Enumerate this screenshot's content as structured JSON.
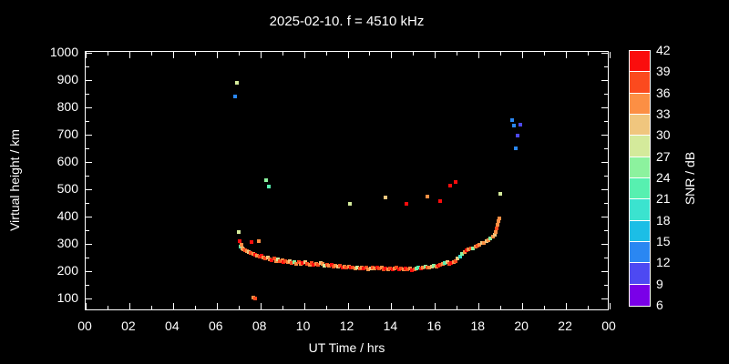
{
  "title": "2025-02-10. f = 4510 kHz",
  "chart_data": {
    "type": "scatter",
    "title": "2025-02-10. f = 4510 kHz",
    "xlabel": "UT Time / hrs",
    "ylabel": "Virtual height / km",
    "xlim_hours": [
      0,
      24
    ],
    "ylim_km": [
      50,
      1000
    ],
    "grid": false,
    "background_color": "#000000",
    "axis_color": "#ffffff",
    "x_tick_labels": [
      "00",
      "02",
      "04",
      "06",
      "08",
      "10",
      "12",
      "14",
      "16",
      "18",
      "20",
      "22",
      "00"
    ],
    "x_tick_hours": [
      0,
      2,
      4,
      6,
      8,
      10,
      12,
      14,
      16,
      18,
      20,
      22,
      24
    ],
    "x_minor_tick_hours": [
      1,
      3,
      5,
      7,
      9,
      11,
      13,
      15,
      17,
      19,
      21,
      23
    ],
    "y_tick_values": [
      100,
      200,
      300,
      400,
      500,
      600,
      700,
      800,
      900,
      1000
    ],
    "y_minor_tick_values": [
      150,
      250,
      350,
      450,
      550,
      650,
      750,
      850,
      950
    ],
    "colorbar": {
      "label": "SNR / dB",
      "tick_values": [
        42,
        39,
        36,
        33,
        30,
        27,
        24,
        21,
        18,
        15,
        12,
        9,
        6
      ],
      "min": 6,
      "max": 42,
      "segment_colors_low_to_high": [
        "#7a00e8",
        "#4d49f2",
        "#2a87f2",
        "#1cbee6",
        "#3be3cf",
        "#57f0b0",
        "#8cf29e",
        "#d4ea9b",
        "#f0c67e",
        "#fc8f44",
        "#fb4a1e",
        "#fa0d0d"
      ]
    },
    "point_legend": "each point = [UT time in hours, virtual height in km, SNR in dB]",
    "points": [
      [
        6.85,
        840,
        14
      ],
      [
        6.92,
        890,
        28
      ],
      [
        7.0,
        345,
        28
      ],
      [
        7.04,
        310,
        40
      ],
      [
        7.1,
        290,
        22
      ],
      [
        7.15,
        296,
        34
      ],
      [
        7.19,
        284,
        31
      ],
      [
        7.24,
        280,
        34
      ],
      [
        7.3,
        276,
        37
      ],
      [
        7.38,
        274,
        34
      ],
      [
        7.46,
        270,
        31
      ],
      [
        7.55,
        268,
        37
      ],
      [
        7.6,
        307,
        40
      ],
      [
        7.68,
        264,
        35
      ],
      [
        7.67,
        105,
        34
      ],
      [
        7.76,
        100,
        37
      ],
      [
        7.76,
        260,
        40
      ],
      [
        7.85,
        256,
        34
      ],
      [
        7.92,
        310,
        34
      ],
      [
        7.98,
        253,
        37
      ],
      [
        8.06,
        258,
        40
      ],
      [
        8.15,
        250,
        34
      ],
      [
        8.24,
        246,
        37
      ],
      [
        8.25,
        533,
        26
      ],
      [
        8.34,
        250,
        31
      ],
      [
        8.4,
        510,
        22
      ],
      [
        8.44,
        244,
        34
      ],
      [
        8.53,
        240,
        40
      ],
      [
        8.62,
        246,
        37
      ],
      [
        8.72,
        238,
        34
      ],
      [
        8.81,
        242,
        28
      ],
      [
        8.9,
        236,
        37
      ],
      [
        9.0,
        240,
        34
      ],
      [
        9.06,
        233,
        40
      ],
      [
        9.15,
        238,
        37
      ],
      [
        9.25,
        232,
        34
      ],
      [
        9.35,
        236,
        31
      ],
      [
        9.45,
        230,
        37
      ],
      [
        9.55,
        234,
        25
      ],
      [
        9.65,
        228,
        34
      ],
      [
        9.75,
        232,
        37
      ],
      [
        9.85,
        227,
        34
      ],
      [
        9.95,
        230,
        40
      ],
      [
        10.05,
        233,
        31
      ],
      [
        10.15,
        228,
        37
      ],
      [
        10.25,
        225,
        34
      ],
      [
        10.35,
        229,
        37
      ],
      [
        10.45,
        224,
        40
      ],
      [
        10.55,
        227,
        34
      ],
      [
        10.65,
        222,
        37
      ],
      [
        10.75,
        230,
        31
      ],
      [
        10.85,
        226,
        34
      ],
      [
        10.95,
        221,
        28
      ],
      [
        11.05,
        224,
        37
      ],
      [
        11.15,
        219,
        34
      ],
      [
        11.25,
        222,
        40
      ],
      [
        11.35,
        217,
        37
      ],
      [
        11.45,
        220,
        34
      ],
      [
        11.55,
        216,
        31
      ],
      [
        11.65,
        219,
        37
      ],
      [
        11.75,
        214,
        40
      ],
      [
        11.85,
        217,
        34
      ],
      [
        11.95,
        213,
        37
      ],
      [
        12.05,
        216,
        34
      ],
      [
        12.1,
        447,
        28
      ],
      [
        12.15,
        212,
        40
      ],
      [
        12.25,
        215,
        37
      ],
      [
        12.35,
        211,
        34
      ],
      [
        12.45,
        214,
        28
      ],
      [
        12.55,
        210,
        37
      ],
      [
        12.65,
        213,
        34
      ],
      [
        12.75,
        209,
        40
      ],
      [
        12.85,
        212,
        37
      ],
      [
        12.95,
        208,
        34
      ],
      [
        13.05,
        211,
        31
      ],
      [
        13.15,
        214,
        37
      ],
      [
        13.25,
        210,
        34
      ],
      [
        13.35,
        213,
        40
      ],
      [
        13.45,
        209,
        37
      ],
      [
        13.55,
        212,
        34
      ],
      [
        13.65,
        208,
        37
      ],
      [
        13.75,
        470,
        32
      ],
      [
        13.75,
        211,
        40
      ],
      [
        13.85,
        207,
        34
      ],
      [
        13.95,
        210,
        37
      ],
      [
        14.05,
        206,
        40
      ],
      [
        14.15,
        209,
        34
      ],
      [
        14.25,
        212,
        37
      ],
      [
        14.35,
        208,
        40
      ],
      [
        14.45,
        211,
        37
      ],
      [
        14.55,
        207,
        34
      ],
      [
        14.65,
        210,
        40
      ],
      [
        14.7,
        447,
        40
      ],
      [
        14.75,
        206,
        37
      ],
      [
        14.85,
        209,
        34
      ],
      [
        14.95,
        205,
        40
      ],
      [
        15.05,
        208,
        37
      ],
      [
        15.15,
        211,
        26
      ],
      [
        15.25,
        214,
        23
      ],
      [
        15.35,
        210,
        40
      ],
      [
        15.45,
        213,
        34
      ],
      [
        15.55,
        216,
        26
      ],
      [
        15.65,
        472,
        34
      ],
      [
        15.65,
        212,
        37
      ],
      [
        15.75,
        215,
        34
      ],
      [
        15.85,
        218,
        31
      ],
      [
        15.95,
        221,
        26
      ],
      [
        16.05,
        217,
        34
      ],
      [
        16.15,
        220,
        40
      ],
      [
        16.25,
        456,
        40
      ],
      [
        16.25,
        223,
        37
      ],
      [
        16.35,
        226,
        34
      ],
      [
        16.45,
        229,
        23
      ],
      [
        16.55,
        232,
        31
      ],
      [
        16.65,
        228,
        37
      ],
      [
        16.7,
        513,
        41
      ],
      [
        16.75,
        231,
        40
      ],
      [
        16.85,
        234,
        34
      ],
      [
        16.95,
        237,
        37
      ],
      [
        16.96,
        528,
        41
      ],
      [
        17.05,
        247,
        31
      ],
      [
        17.15,
        255,
        20
      ],
      [
        17.25,
        262,
        26
      ],
      [
        17.35,
        270,
        34
      ],
      [
        17.45,
        276,
        40
      ],
      [
        17.55,
        280,
        34
      ],
      [
        17.65,
        282,
        37
      ],
      [
        17.75,
        285,
        26
      ],
      [
        17.85,
        290,
        34
      ],
      [
        17.95,
        295,
        37
      ],
      [
        18.05,
        298,
        34
      ],
      [
        18.15,
        302,
        31
      ],
      [
        18.25,
        305,
        34
      ],
      [
        18.35,
        310,
        31
      ],
      [
        18.45,
        315,
        34
      ],
      [
        18.55,
        320,
        26
      ],
      [
        18.65,
        326,
        34
      ],
      [
        18.72,
        335,
        31
      ],
      [
        18.78,
        345,
        34
      ],
      [
        18.84,
        358,
        37
      ],
      [
        18.88,
        370,
        34
      ],
      [
        18.92,
        382,
        34
      ],
      [
        18.95,
        393,
        34
      ],
      [
        19.0,
        483,
        29
      ],
      [
        19.54,
        753,
        13
      ],
      [
        19.6,
        733,
        13
      ],
      [
        19.7,
        650,
        13
      ],
      [
        19.8,
        697,
        11
      ],
      [
        19.9,
        737,
        11
      ]
    ]
  }
}
